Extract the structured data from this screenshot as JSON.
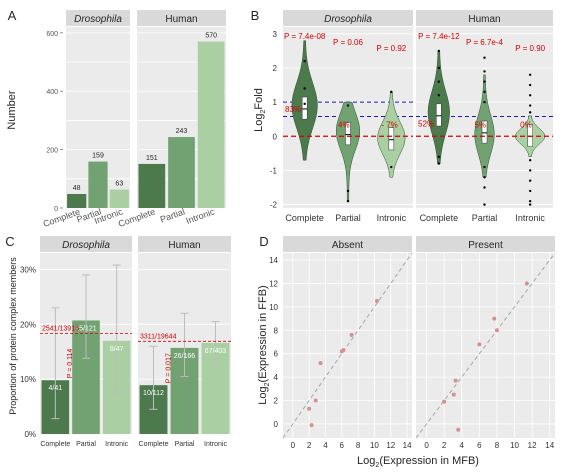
{
  "colors": {
    "panel_bg": "#ebebeb",
    "strip_bg": "#d9d9d9",
    "grid": "#ffffff",
    "complete": "#4d7a4d",
    "partial": "#72a272",
    "intronic": "#a9cfa3",
    "annot_red": "#d40000",
    "annot_blue": "#1a1ac9",
    "err": "#bdbdbd",
    "diag": "#a6a6a6",
    "point": "#d69090",
    "text": "#262626"
  },
  "chart_data": [
    {
      "id": "A",
      "panel_label": "A",
      "type": "bar",
      "ylabel": "Number",
      "ylim": [
        0,
        620
      ],
      "yticks": [
        "0",
        "200",
        "400",
        "600"
      ],
      "facets": [
        "Drosophila",
        "Human"
      ],
      "categories": [
        "Complete",
        "Partial",
        "Intronic"
      ],
      "series": [
        {
          "facet": "Drosophila",
          "values": [
            48,
            159,
            63
          ],
          "labels": [
            "48",
            "159",
            "63"
          ]
        },
        {
          "facet": "Human",
          "values": [
            151,
            243,
            570
          ],
          "labels": [
            "151",
            "243",
            "570"
          ]
        }
      ]
    },
    {
      "id": "B",
      "panel_label": "B",
      "type": "violin",
      "ylabel_main": "Log",
      "ylabel_sub": "2",
      "ylabel_rest": "Fold",
      "ylim": [
        -2.1,
        3.2
      ],
      "yticks": [
        "-2",
        "-1",
        "0",
        "1",
        "2",
        "3"
      ],
      "facets": [
        "Drosophila",
        "Human"
      ],
      "categories": [
        "Complete",
        "Partial",
        "Intronic"
      ],
      "hlines": {
        "red": 0,
        "blue_drosophila": 1.0,
        "blue_human": 0.58,
        "blue_lower": 0.58
      },
      "pvalues": {
        "Drosophila": [
          "P = 7.4e-08",
          "P = 0.06",
          "P = 0.92"
        ],
        "Human": [
          "P = 7.4e-12",
          "P = 6.7e-4",
          "P = 0.90"
        ]
      },
      "percent_labels": {
        "Drosophila": [
          "83%",
          "4%",
          "- 7%"
        ],
        "Human": [
          "52%",
          "5%",
          "0%"
        ]
      },
      "medians": {
        "Drosophila": [
          0.8,
          0.05,
          -0.1
        ],
        "Human": [
          0.6,
          0.1,
          0.0
        ]
      }
    },
    {
      "id": "C",
      "panel_label": "C",
      "type": "bar",
      "ylabel": "Proportion of protein complex members",
      "ylim": [
        0,
        33
      ],
      "yticks": [
        "0%",
        "10%",
        "20%",
        "30%"
      ],
      "facets": [
        "Drosophila",
        "Human"
      ],
      "categories": [
        "Complete",
        "Partial",
        "Intronic"
      ],
      "series": [
        {
          "facet": "Drosophila",
          "values": [
            9.8,
            20.7,
            17.0
          ],
          "ci_low": [
            2.8,
            13.8,
            7.6
          ],
          "ci_high": [
            23.0,
            29.0,
            30.8
          ],
          "labels": [
            "4/41",
            "25/121",
            "8/47"
          ]
        },
        {
          "facet": "Human",
          "values": [
            8.9,
            15.7,
            16.6
          ],
          "ci_low": [
            4.5,
            10.5,
            13.0
          ],
          "ci_high": [
            16.0,
            22.0,
            20.5
          ],
          "labels": [
            "10/112",
            "26/166",
            "67/403"
          ]
        }
      ],
      "reference": {
        "Drosophila": {
          "value": 18.3,
          "label": "2541/13913"
        },
        "Human": {
          "value": 16.9,
          "label": "3311/19644"
        }
      },
      "pvalue_labels": {
        "Drosophila": "P = 0.114",
        "Human": "P = 0.017"
      }
    },
    {
      "id": "D",
      "panel_label": "D",
      "type": "scatter",
      "xlabel_pre": "Log",
      "xlabel_sub": "2",
      "xlabel_rest": "(Expression in MFB)",
      "ylabel_pre": "Log",
      "ylabel_sub": "2",
      "ylabel_rest": "(Expression in FFB)",
      "xlim": [
        -1.2,
        14.6
      ],
      "ylim": [
        -1.2,
        14.6
      ],
      "xticks": [
        "0",
        "2",
        "4",
        "6",
        "8",
        "10",
        "12",
        "14"
      ],
      "yticks": [
        "0",
        "2",
        "4",
        "6",
        "8",
        "10",
        "12",
        "14"
      ],
      "facets": [
        "Absent",
        "Present"
      ],
      "series": [
        {
          "facet": "Absent",
          "x": [
            2.0,
            2.3,
            2.8,
            3.4,
            6.0,
            6.2,
            7.2,
            10.3
          ],
          "y": [
            1.3,
            -0.1,
            2.0,
            5.2,
            6.2,
            6.3,
            7.6,
            10.5
          ]
        },
        {
          "facet": "Present",
          "x": [
            2.0,
            3.1,
            3.3,
            3.6,
            6.0,
            7.7,
            8.0,
            11.4
          ],
          "y": [
            1.9,
            2.5,
            3.7,
            -0.5,
            6.8,
            9.0,
            8.0,
            12.0
          ]
        }
      ]
    }
  ]
}
